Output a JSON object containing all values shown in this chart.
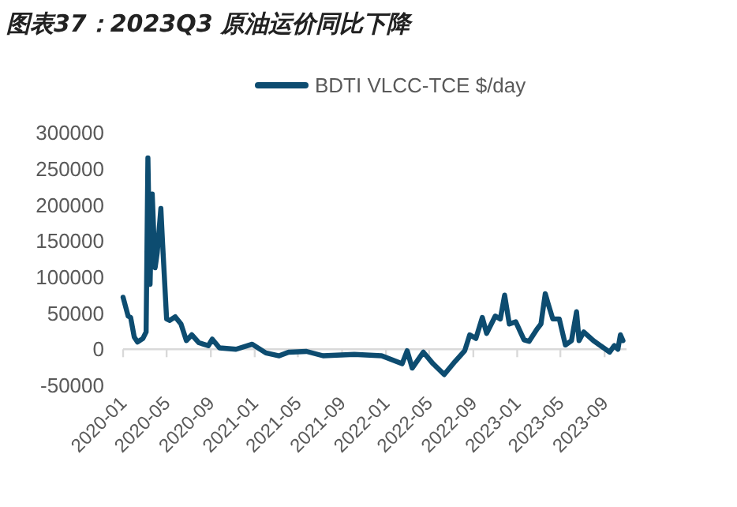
{
  "chart_data": {
    "type": "line",
    "title": "图表37：2023Q3 原油运价同比下降",
    "x": [
      "2020-01-01",
      "2020-01-15",
      "2020-01-22",
      "2020-02-01",
      "2020-02-10",
      "2020-02-25",
      "2020-03-05",
      "2020-03-10",
      "2020-03-16",
      "2020-03-22",
      "2020-03-30",
      "2020-04-05",
      "2020-04-15",
      "2020-04-20",
      "2020-05-01",
      "2020-05-10",
      "2020-05-25",
      "2020-06-10",
      "2020-06-25",
      "2020-07-10",
      "2020-07-30",
      "2020-08-25",
      "2020-09-05",
      "2020-09-25",
      "2020-11-10",
      "2020-12-25",
      "2021-02-01",
      "2021-03-10",
      "2021-04-05",
      "2021-05-25",
      "2021-07-10",
      "2021-10-05",
      "2021-12-20",
      "2022-02-15",
      "2022-03-01",
      "2022-03-15",
      "2022-04-15",
      "2022-05-12",
      "2022-06-12",
      "2022-07-12",
      "2022-08-08",
      "2022-08-22",
      "2022-09-08",
      "2022-09-26",
      "2022-10-08",
      "2022-11-01",
      "2022-11-15",
      "2022-11-27",
      "2022-12-10",
      "2022-12-28",
      "2023-01-20",
      "2023-02-03",
      "2023-02-25",
      "2023-03-08",
      "2023-03-20",
      "2023-03-28",
      "2023-04-10",
      "2023-04-28",
      "2023-05-15",
      "2023-06-01",
      "2023-06-15",
      "2023-06-22",
      "2023-07-05",
      "2023-08-01",
      "2023-09-15",
      "2023-09-28",
      "2023-10-08",
      "2023-10-15",
      "2023-10-22"
    ],
    "series": [
      {
        "name": "BDTI VLCC-TCE $/day",
        "color": "#0d4c70",
        "values": [
          72000,
          46000,
          44000,
          17000,
          10000,
          15000,
          24000,
          265000,
          90000,
          215000,
          113000,
          134000,
          195000,
          145000,
          42000,
          40000,
          45000,
          35000,
          12000,
          20000,
          9000,
          5000,
          14000,
          2000,
          0,
          7000,
          -5000,
          -9000,
          -4000,
          -3000,
          -9000,
          -7000,
          -9000,
          -20000,
          -2000,
          -26000,
          -4000,
          -20000,
          -35000,
          -17000,
          -2000,
          20000,
          15000,
          44000,
          22000,
          46000,
          42000,
          75000,
          35000,
          38000,
          13000,
          11000,
          28000,
          35000,
          77000,
          63000,
          42000,
          42000,
          6000,
          12000,
          52000,
          12000,
          24000,
          12000,
          -4000,
          5000,
          0,
          20000,
          12000
        ]
      }
    ],
    "xlim": [
      "2020-01-01",
      "2023-11-01"
    ],
    "xticks": [
      {
        "value": "2020-01-01",
        "label": "2020-01"
      },
      {
        "value": "2020-05-01",
        "label": "2020-05"
      },
      {
        "value": "2020-09-01",
        "label": "2020-09"
      },
      {
        "value": "2021-01-01",
        "label": "2021-01"
      },
      {
        "value": "2021-05-01",
        "label": "2021-05"
      },
      {
        "value": "2021-09-01",
        "label": "2021-09"
      },
      {
        "value": "2022-01-01",
        "label": "2022-01"
      },
      {
        "value": "2022-05-01",
        "label": "2022-05"
      },
      {
        "value": "2022-09-01",
        "label": "2022-09"
      },
      {
        "value": "2023-01-01",
        "label": "2023-01"
      },
      {
        "value": "2023-05-01",
        "label": "2023-05"
      },
      {
        "value": "2023-09-01",
        "label": "2023-09"
      }
    ],
    "ylim": [
      -50000,
      300000
    ],
    "yticks": [
      -50000,
      0,
      50000,
      100000,
      150000,
      200000,
      250000,
      300000
    ],
    "legend": "top",
    "grid": false,
    "line_style": "solid",
    "marker": "none"
  }
}
